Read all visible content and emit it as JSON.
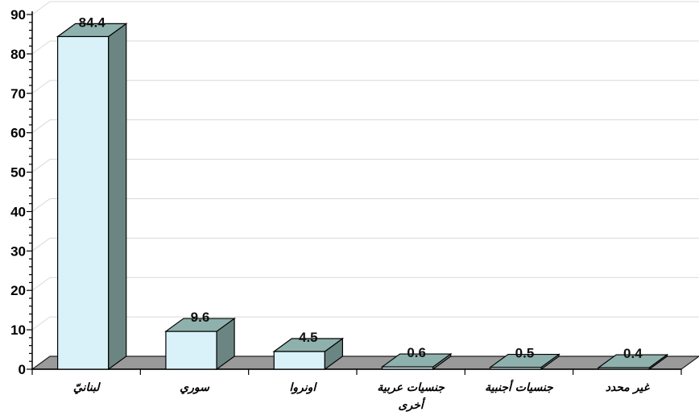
{
  "chart_data": {
    "type": "bar",
    "categories": [
      "لبنانيّ",
      "سوري",
      "اونروا",
      "جنسيات عربية أخرى",
      "جنسيات أجنبية",
      "غير محدد"
    ],
    "values": [
      84.4,
      9.6,
      4.5,
      0.6,
      0.5,
      0.4
    ],
    "data_labels": [
      "84.4",
      "9.6",
      "4.5",
      "0.6",
      "0.5",
      "0.4"
    ],
    "title": "",
    "xlabel": "",
    "ylabel": "",
    "ylim": [
      0,
      90
    ],
    "yticks": [
      "0",
      "10",
      "20",
      "30",
      "40",
      "50",
      "60",
      "70",
      "80",
      "90"
    ],
    "grid": true,
    "legend": "none",
    "style": "3d-column"
  },
  "colors": {
    "bar_front": "#d9f1f8",
    "bar_top": "#8fb1ad",
    "bar_side": "#6b8682",
    "floor": "#9a9a9a",
    "grid": "#d9d9d9"
  }
}
